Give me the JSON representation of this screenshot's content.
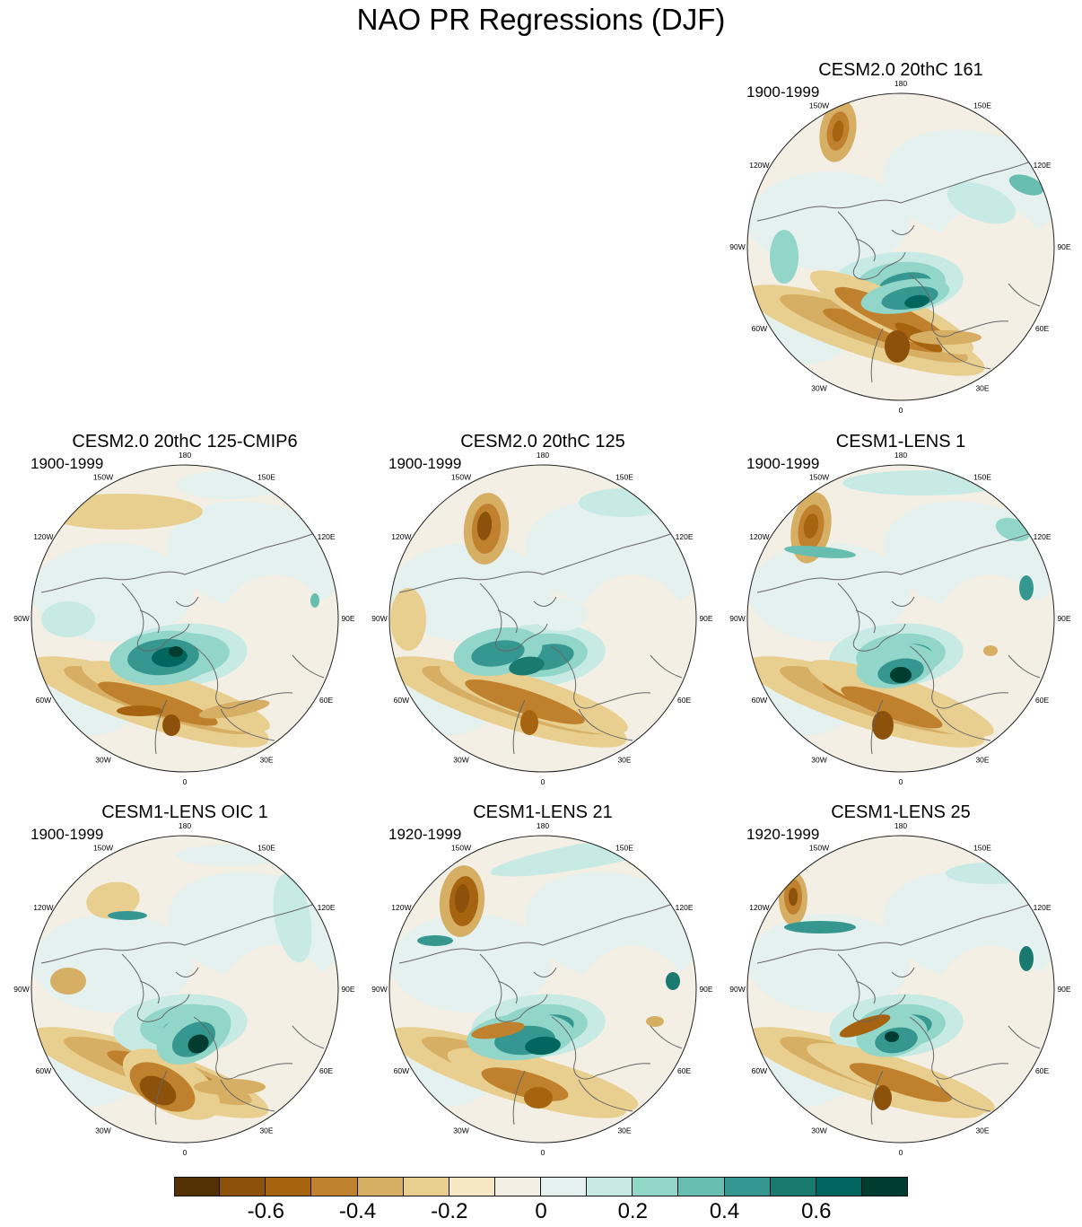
{
  "title": "NAO PR Regressions (DJF)",
  "lon_labels": [
    "180",
    "150E",
    "120E",
    "90E",
    "60E",
    "30E",
    "0",
    "30W",
    "60W",
    "90W",
    "120W",
    "150W"
  ],
  "panels": [
    {
      "id": "p1",
      "title": "CESM2.0 20thC 161",
      "period": "1900-1999",
      "style": "m1"
    },
    {
      "id": "p2",
      "title": "CESM2.0 20thC 125-CMIP6",
      "period": "1900-1999",
      "style": "m2"
    },
    {
      "id": "p3",
      "title": "CESM2.0 20thC 125",
      "period": "1900-1999",
      "style": "m3"
    },
    {
      "id": "p4",
      "title": "CESM1-LENS 1",
      "period": "1900-1999",
      "style": "m4"
    },
    {
      "id": "p5",
      "title": "CESM1-LENS OIC 1",
      "period": "1900-1999",
      "style": "m5"
    },
    {
      "id": "p6",
      "title": "CESM1-LENS 21",
      "period": "1920-1999",
      "style": "m6"
    },
    {
      "id": "p7",
      "title": "CESM1-LENS 25",
      "period": "1920-1999",
      "style": "m7"
    }
  ],
  "colorbar": {
    "colors": [
      "#543005",
      "#8c510a",
      "#a66411",
      "#bf812d",
      "#d6ae64",
      "#e8cf8f",
      "#f6e8c3",
      "#f3efe4",
      "#e4f1ef",
      "#c7eae5",
      "#92d5c9",
      "#66bdb0",
      "#35978f",
      "#1b7a70",
      "#01665e",
      "#003c30"
    ],
    "labels": [
      "-0.6",
      "-0.4",
      "-0.2",
      "0",
      "0.2",
      "0.4",
      "0.6"
    ]
  }
}
